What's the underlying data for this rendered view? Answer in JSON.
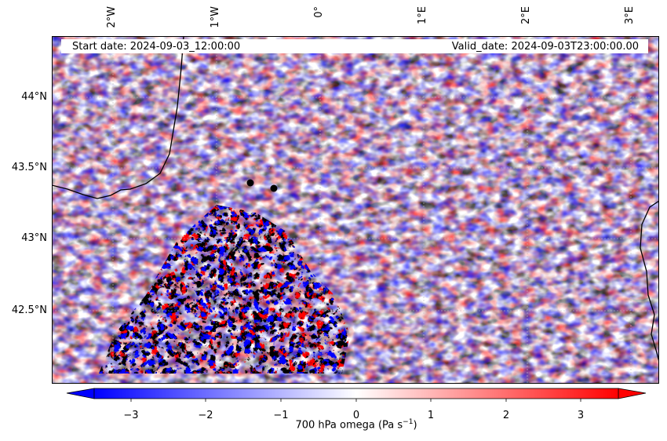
{
  "map": {
    "start_label": "Start date: 2024-09-03_12:00:00",
    "valid_label": "Valid_date: 2024-09-03T23:00:00.00",
    "lon_ticks": [
      "2°W",
      "1°W",
      "0°",
      "1°E",
      "2°E",
      "3°E"
    ],
    "lat_ticks": [
      "44°N",
      "43.5°N",
      "43°N",
      "42.5°N"
    ],
    "extent": {
      "lon": [
        -2.6,
        3.25
      ],
      "lat": [
        42.0,
        44.42
      ]
    },
    "points": [
      {
        "lon": -0.62,
        "lat": 43.39
      },
      {
        "lon": -0.4,
        "lat": 43.35
      }
    ]
  },
  "colorbar": {
    "label": "700 hPa omega (Pa s",
    "label_sup": "−1",
    "label_end": ")",
    "ticks": [
      "−3",
      "−2",
      "−1",
      "0",
      "1",
      "2",
      "3"
    ],
    "range": [
      -3.5,
      3.5
    ],
    "min_color": "#0000ff",
    "mid_color": "#ffffff",
    "max_color": "#ff0000"
  }
}
